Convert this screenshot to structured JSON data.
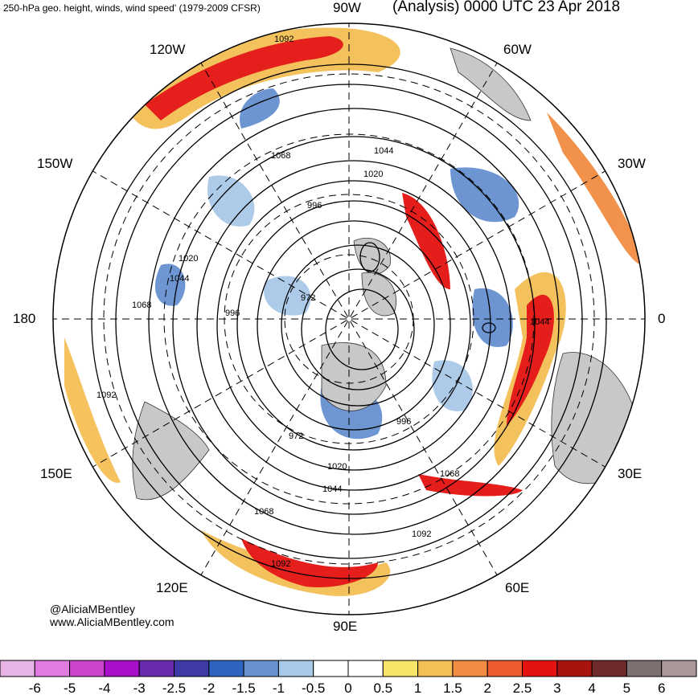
{
  "header": {
    "title_left": "250-hPa geo. height, winds, wind speed' (1979-2009 CFSR)",
    "title_right": "(Analysis) 0000 UTC 23 Apr 2018"
  },
  "map": {
    "projection": "north-polar-stereographic",
    "longitude_labels": {
      "top": "90W",
      "bottom": "90E",
      "left": "180",
      "right": "0",
      "upper_left_1": "120W",
      "upper_left_2": "150W",
      "upper_right_1": "60W",
      "upper_right_2": "30W",
      "lower_left_1": "150E",
      "lower_left_2": "120E",
      "lower_right_1": "30E",
      "lower_right_2": "60E"
    },
    "contour_labels": [
      "1092",
      "1068",
      "1044",
      "1020",
      "996",
      "972",
      "996",
      "1044",
      "1068",
      "1020",
      "972",
      "1092",
      "1068",
      "1092",
      "1068",
      "1044",
      "1020",
      "996",
      "1044",
      "1092"
    ],
    "colors": {
      "land": "#c8c8c8",
      "contour": "#000000",
      "grid": "#000000"
    }
  },
  "credits": {
    "handle": "@AliciaMBentley",
    "website": "www.AliciaMBentley.com"
  },
  "colorbar": {
    "ticks": [
      "-6",
      "-5",
      "-4",
      "-3",
      "-2.5",
      "-2",
      "-1.5",
      "-1",
      "-0.5",
      "0",
      "0.5",
      "1",
      "1.5",
      "2",
      "2.5",
      "3",
      "4",
      "5",
      "6"
    ],
    "colors": [
      "#e8b4e6",
      "#e07ce0",
      "#cc44cc",
      "#a80fc8",
      "#6a2ab0",
      "#3e3aa6",
      "#2e64c0",
      "#6690d0",
      "#a9c9e8",
      "#ffffff",
      "#ffffff",
      "#f9e46a",
      "#f4bf55",
      "#f18c42",
      "#ed5a30",
      "#e4130f",
      "#a8120f",
      "#6e2a2a",
      "#7d7070",
      "#a89898"
    ]
  }
}
